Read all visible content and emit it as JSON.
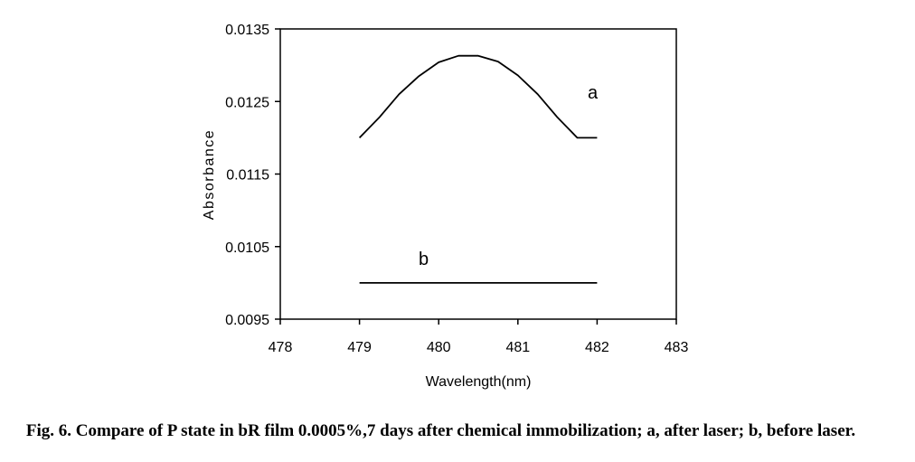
{
  "caption": "Fig. 6. Compare of P state in bR film 0.0005%,7 days after chemical immobilization; a, after laser; b, before laser.",
  "chart_data": {
    "type": "line",
    "xlabel": "Wavelength(nm)",
    "ylabel": "Absorbance",
    "xlim": [
      478,
      483
    ],
    "ylim": [
      0.0095,
      0.0135
    ],
    "x_ticks": [
      "478",
      "479",
      "480",
      "481",
      "482",
      "483"
    ],
    "y_ticks": [
      "0.0095",
      "0.0105",
      "0.0115",
      "0.0125",
      "0.0135"
    ],
    "grid": false,
    "legend": "none",
    "series": [
      {
        "name": "a",
        "x": [
          479,
          479.25,
          479.5,
          479.75,
          480,
          480.25,
          480.5,
          480.75,
          481,
          481.25,
          481.5,
          481.75,
          482
        ],
        "y": [
          0.012,
          0.01228,
          0.0126,
          0.01285,
          0.01304,
          0.01313,
          0.01313,
          0.01305,
          0.01286,
          0.0126,
          0.01228,
          0.012,
          0.012
        ]
      },
      {
        "name": "b",
        "x": [
          479,
          482
        ],
        "y": [
          0.01,
          0.01
        ]
      }
    ],
    "colors": {
      "line": "#000000",
      "axis": "#000000"
    }
  }
}
